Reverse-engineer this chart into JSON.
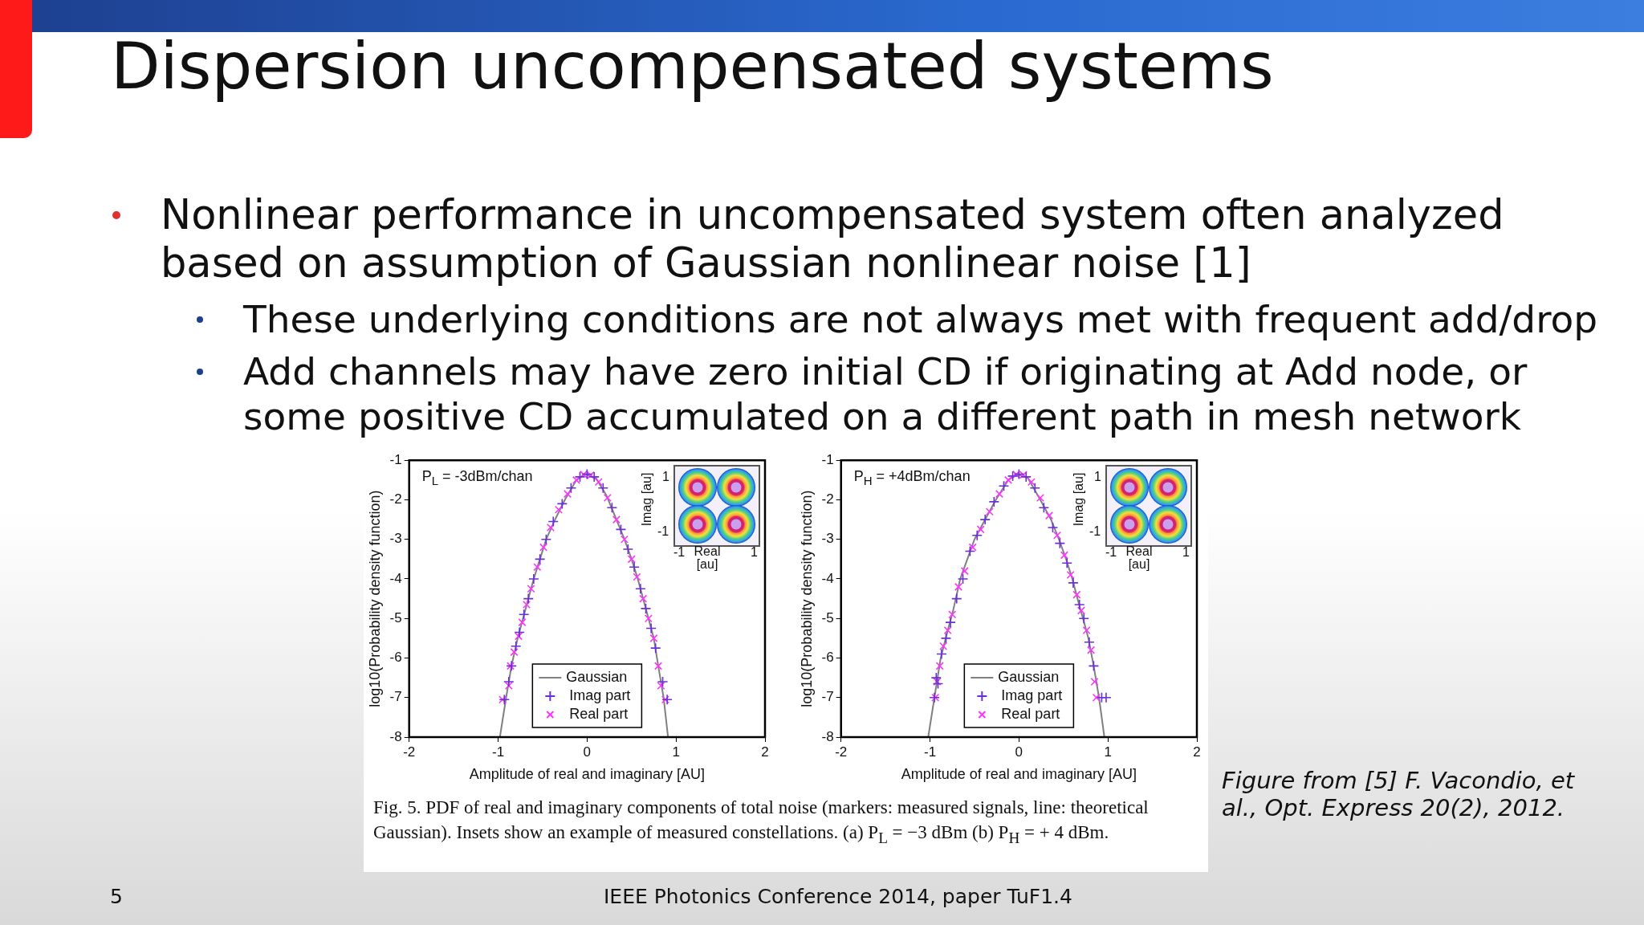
{
  "chart_data": [
    {
      "type": "other",
      "title": "Dispersion uncompensated systems",
      "annotations": [
        "Nonlinear performance in uncompensated system often analyzed based on assumption of Gaussian nonlinear noise [1]",
        "These underlying conditions are not always met with frequent add/drop",
        "Add channels may have zero initial CD if originating at Add node, or some positive CD accumulated on a different path in mesh network",
        "Fig. 5. PDF of real and imaginary components of total noise (markers: measured signals, line: theoretical Gaussian). Insets show an example of measured constellations. (a) P$_{L}$ = −3 dBm (b) P$_{H}$ = + 4 dBm.",
        "Figure from [5] F. Vacondio, et al., Opt. Express 20(2), 2012.",
        "IEEE Photonics Conference 2014, paper TuF1.4",
        "5"
      ]
    },
    {
      "type": "scatter",
      "xlabel": "Amplitude of real and imaginary [AU]",
      "ylabel": "log10(Probability density function)",
      "xlim": [
        -2,
        2
      ],
      "ylim": [
        -8,
        -1
      ],
      "xticks": [
        -2,
        -1,
        0,
        1,
        2
      ],
      "yticks": [
        -8,
        -7,
        -6,
        -5,
        -4,
        -3,
        -2,
        -1
      ],
      "legend": "bottom",
      "annotations": [
        "P$_{L}$ = -3dBm/chan",
        "Imag [au]",
        "Real [au]",
        "1",
        "-1",
        "-1",
        "1"
      ],
      "series": [
        {
          "name": "Gaussian",
          "type": "line",
          "marker": "none",
          "color": "#808080",
          "x": [
            -0.98,
            -0.91,
            -0.85,
            -0.78,
            -0.72,
            -0.66,
            -0.6,
            -0.53,
            -0.46,
            -0.36,
            -0.25,
            -0.12,
            -0.02,
            0.1,
            0.22,
            0.33,
            0.42,
            0.5,
            0.57,
            0.63,
            0.69,
            0.75,
            0.8,
            0.86,
            0.91
          ],
          "values": [
            -8,
            -7,
            -6.2,
            -5.5,
            -5,
            -4.5,
            -4,
            -3.5,
            -3,
            -2.5,
            -2,
            -1.5,
            -1.35,
            -1.45,
            -1.9,
            -2.5,
            -3,
            -3.5,
            -4,
            -4.5,
            -5,
            -5.5,
            -6.2,
            -7,
            -8
          ]
        },
        {
          "name": "Imag part",
          "type": "scatter",
          "marker": "cross",
          "color": "#6a2fd6",
          "x": [
            -0.93,
            -0.88,
            -0.85,
            -0.8,
            -0.76,
            -0.71,
            -0.66,
            -0.6,
            -0.53,
            -0.46,
            -0.38,
            -0.28,
            -0.18,
            -0.08,
            0,
            0.08,
            0.18,
            0.28,
            0.38,
            0.46,
            0.53,
            0.6,
            0.66,
            0.72,
            0.77,
            0.85,
            0.9
          ],
          "values": [
            -7.05,
            -6.6,
            -6.2,
            -5.7,
            -5.35,
            -4.9,
            -4.5,
            -4,
            -3.5,
            -3,
            -2.55,
            -2.1,
            -1.7,
            -1.42,
            -1.35,
            -1.42,
            -1.7,
            -2.2,
            -2.75,
            -3.25,
            -3.7,
            -4.25,
            -4.75,
            -5.25,
            -5.75,
            -6.6,
            -7.05
          ]
        },
        {
          "name": "Real part",
          "type": "scatter",
          "marker": "x",
          "color": "#ff33ff",
          "x": [
            -0.95,
            -0.88,
            -0.86,
            -0.82,
            -0.77,
            -0.73,
            -0.68,
            -0.63,
            -0.56,
            -0.49,
            -0.41,
            -0.32,
            -0.22,
            -0.12,
            -0.04,
            0.04,
            0.13,
            0.23,
            0.33,
            0.42,
            0.5,
            0.56,
            0.63,
            0.69,
            0.75,
            0.8,
            0.83,
            0.88
          ],
          "values": [
            -7.05,
            -6.7,
            -6.2,
            -5.85,
            -5.45,
            -5.1,
            -4.65,
            -4.25,
            -3.7,
            -3.2,
            -2.7,
            -2.25,
            -1.85,
            -1.5,
            -1.36,
            -1.38,
            -1.55,
            -1.95,
            -2.5,
            -3,
            -3.5,
            -3.95,
            -4.5,
            -5,
            -5.5,
            -6.2,
            -6.7,
            -7.05
          ]
        }
      ]
    },
    {
      "type": "scatter",
      "xlabel": "Amplitude of real and imaginary [AU]",
      "ylabel": "log10(Probability density function)",
      "xlim": [
        -2,
        2
      ],
      "ylim": [
        -8,
        -1
      ],
      "xticks": [
        -2,
        -1,
        0,
        1,
        2
      ],
      "yticks": [
        -8,
        -7,
        -6,
        -5,
        -4,
        -3,
        -2,
        -1
      ],
      "legend": "bottom",
      "annotations": [
        "P$_{H}$ = +4dBm/chan",
        "Imag [au]",
        "Real [au]",
        "1",
        "-1",
        "-1",
        "1"
      ],
      "series": [
        {
          "name": "Gaussian",
          "type": "line",
          "marker": "none",
          "color": "#808080",
          "x": [
            -1.02,
            -0.95,
            -0.88,
            -0.8,
            -0.74,
            -0.66,
            -0.58,
            -0.5,
            -0.38,
            -0.26,
            -0.12,
            -0.02,
            0.1,
            0.24,
            0.36,
            0.45,
            0.53,
            0.6,
            0.67,
            0.72,
            0.78,
            0.84,
            0.9,
            0.96
          ],
          "values": [
            -8,
            -7,
            -6,
            -5.3,
            -4.8,
            -4,
            -3.5,
            -3,
            -2.5,
            -2,
            -1.5,
            -1.35,
            -1.45,
            -2,
            -2.5,
            -3,
            -3.5,
            -4,
            -4.6,
            -5,
            -5.5,
            -6.2,
            -7,
            -8
          ]
        },
        {
          "name": "Imag part",
          "type": "scatter",
          "marker": "cross",
          "color": "#6a2fd6",
          "x": [
            -0.95,
            -0.93,
            -0.91,
            -0.87,
            -0.82,
            -0.77,
            -0.7,
            -0.63,
            -0.55,
            -0.47,
            -0.38,
            -0.28,
            -0.17,
            -0.07,
            0,
            0.08,
            0.18,
            0.28,
            0.38,
            0.46,
            0.54,
            0.61,
            0.68,
            0.73,
            0.79,
            0.84,
            0.93,
            0.98
          ],
          "values": [
            -7,
            -6.5,
            -6.65,
            -5.9,
            -5.5,
            -5.1,
            -4.5,
            -4,
            -3.3,
            -2.9,
            -2.5,
            -2.05,
            -1.65,
            -1.4,
            -1.35,
            -1.42,
            -1.7,
            -2.2,
            -2.7,
            -3.1,
            -3.6,
            -4.1,
            -4.65,
            -5,
            -5.6,
            -6.2,
            -7,
            -7
          ]
        },
        {
          "name": "Real part",
          "type": "scatter",
          "marker": "x",
          "color": "#ff33ff",
          "x": [
            -0.94,
            -0.92,
            -0.89,
            -0.85,
            -0.8,
            -0.75,
            -0.68,
            -0.61,
            -0.52,
            -0.43,
            -0.33,
            -0.22,
            -0.12,
            -0.03,
            0.05,
            0.14,
            0.24,
            0.34,
            0.43,
            0.51,
            0.58,
            0.65,
            0.7,
            0.76,
            0.81,
            0.85,
            0.87
          ],
          "values": [
            -7,
            -6.6,
            -6.2,
            -5.7,
            -5.3,
            -4.9,
            -4.2,
            -3.8,
            -3.2,
            -2.75,
            -2.3,
            -1.85,
            -1.5,
            -1.36,
            -1.37,
            -1.55,
            -1.95,
            -2.4,
            -2.9,
            -3.4,
            -3.9,
            -4.4,
            -4.8,
            -5.3,
            -5.8,
            -6.6,
            -7
          ]
        }
      ]
    }
  ]
}
